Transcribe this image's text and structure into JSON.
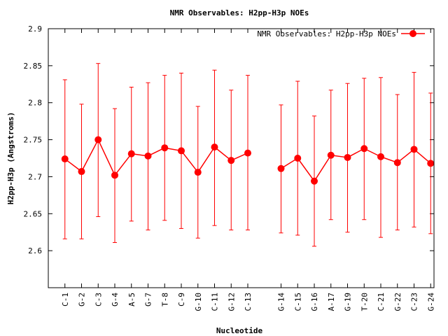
{
  "chart_data": {
    "type": "line",
    "title": "NMR Observables: H2pp-H3p NOEs",
    "xlabel": "Nucleotide",
    "ylabel": "H2pp-H3p (Angstroms)",
    "ylim": [
      2.55,
      2.9
    ],
    "yticks": [
      "2.6",
      "2.65",
      "2.7",
      "2.75",
      "2.8",
      "2.85",
      "2.9"
    ],
    "ytick_values": [
      2.6,
      2.65,
      2.7,
      2.75,
      2.8,
      2.85,
      2.9
    ],
    "grid": false,
    "legend_position": "top-right",
    "color": "#ff0000",
    "series": [
      {
        "name": "NMR Observables: H2pp-H3p NOEs",
        "points": [
          {
            "label": "C-1",
            "pos": 1,
            "y": 2.724,
            "err_low": 2.616,
            "err_high": 2.831
          },
          {
            "label": "G-2",
            "pos": 2,
            "y": 2.707,
            "err_low": 2.616,
            "err_high": 2.798
          },
          {
            "label": "C-3",
            "pos": 3,
            "y": 2.75,
            "err_low": 2.646,
            "err_high": 2.853
          },
          {
            "label": "G-4",
            "pos": 4,
            "y": 2.702,
            "err_low": 2.611,
            "err_high": 2.792
          },
          {
            "label": "A-5",
            "pos": 5,
            "y": 2.731,
            "err_low": 2.64,
            "err_high": 2.821
          },
          {
            "label": "G-7",
            "pos": 6,
            "y": 2.728,
            "err_low": 2.628,
            "err_high": 2.827
          },
          {
            "label": "T-8",
            "pos": 7,
            "y": 2.739,
            "err_low": 2.641,
            "err_high": 2.837
          },
          {
            "label": "C-9",
            "pos": 8,
            "y": 2.735,
            "err_low": 2.63,
            "err_high": 2.84
          },
          {
            "label": "G-10",
            "pos": 9,
            "y": 2.706,
            "err_low": 2.617,
            "err_high": 2.795
          },
          {
            "label": "C-11",
            "pos": 10,
            "y": 2.74,
            "err_low": 2.634,
            "err_high": 2.844
          },
          {
            "label": "G-12",
            "pos": 11,
            "y": 2.722,
            "err_low": 2.628,
            "err_high": 2.817
          },
          {
            "label": "C-13",
            "pos": 12,
            "y": 2.732,
            "err_low": 2.628,
            "err_high": 2.837
          },
          {
            "label": "G-14",
            "pos": 14,
            "y": 2.711,
            "err_low": 2.624,
            "err_high": 2.797
          },
          {
            "label": "C-15",
            "pos": 15,
            "y": 2.725,
            "err_low": 2.621,
            "err_high": 2.829
          },
          {
            "label": "G-16",
            "pos": 16,
            "y": 2.694,
            "err_low": 2.606,
            "err_high": 2.782
          },
          {
            "label": "A-17",
            "pos": 17,
            "y": 2.729,
            "err_low": 2.642,
            "err_high": 2.817
          },
          {
            "label": "G-19",
            "pos": 18,
            "y": 2.726,
            "err_low": 2.625,
            "err_high": 2.826
          },
          {
            "label": "T-20",
            "pos": 19,
            "y": 2.738,
            "err_low": 2.642,
            "err_high": 2.833
          },
          {
            "label": "C-21",
            "pos": 20,
            "y": 2.727,
            "err_low": 2.618,
            "err_high": 2.834
          },
          {
            "label": "G-22",
            "pos": 21,
            "y": 2.719,
            "err_low": 2.628,
            "err_high": 2.811
          },
          {
            "label": "C-23",
            "pos": 22,
            "y": 2.737,
            "err_low": 2.632,
            "err_high": 2.841
          },
          {
            "label": "G-24",
            "pos": 23,
            "y": 2.718,
            "err_low": 2.623,
            "err_high": 2.813
          }
        ]
      }
    ]
  }
}
